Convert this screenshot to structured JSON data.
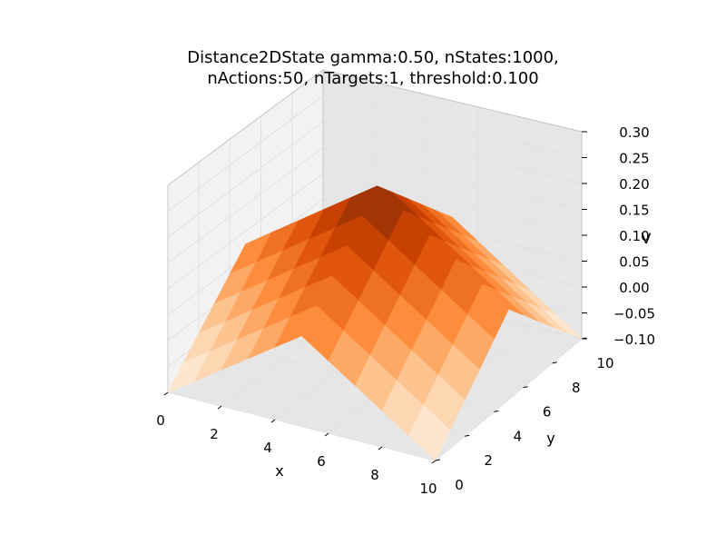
{
  "chart_data": {
    "type": "surface3d",
    "title_lines": [
      "Distance2DState gamma:0.50, nStates:1000,",
      "nActions:50, nTargets:1, threshold:0.100"
    ],
    "xlabel": "x",
    "ylabel": "y",
    "zlabel": "V",
    "xlim": [
      0,
      10
    ],
    "ylim": [
      0,
      10
    ],
    "zlim": [
      -0.1,
      0.3
    ],
    "x_ticks": [
      "0",
      "2",
      "4",
      "6",
      "8",
      "10"
    ],
    "y_ticks": [
      "0",
      "2",
      "4",
      "6",
      "8",
      "10"
    ],
    "z_ticks": [
      "−0.10",
      "−0.05",
      "0.00",
      "0.05",
      "0.10",
      "0.15",
      "0.20",
      "0.25",
      "0.30"
    ],
    "grid": true,
    "colormap": "Oranges",
    "colors": {
      "pane_light": "#f2f2f2",
      "pane_dark": "#e6e6e6",
      "grid": "#e0e0e0",
      "cmap_low": "#fff5eb",
      "cmap_mid1": "#fdd0a2",
      "cmap_mid2": "#fd8d3c",
      "cmap_mid3": "#d94801",
      "cmap_high": "#7f2704"
    },
    "surface": {
      "x": [
        0,
        1,
        2,
        3,
        4,
        5,
        6,
        7,
        8,
        9,
        10
      ],
      "y": [
        0,
        1,
        2,
        3,
        4,
        5,
        6,
        7,
        8,
        9,
        10
      ],
      "peak": [
        5,
        5
      ],
      "peak_value": 0.25,
      "min_value": -0.1,
      "decay_per_unit": 0.035
    }
  }
}
